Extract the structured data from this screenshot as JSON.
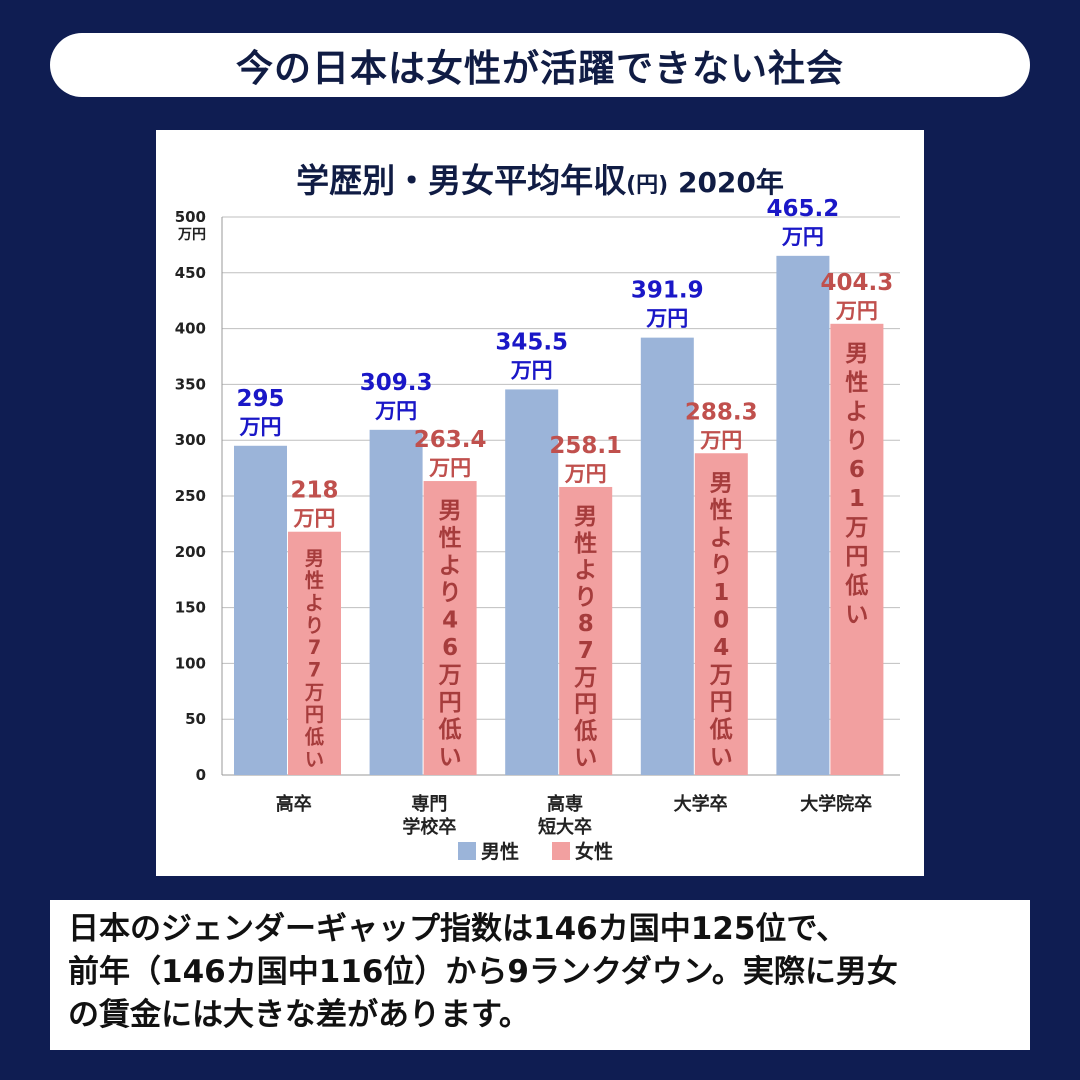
{
  "headline": "今の日本は女性が活躍できない社会",
  "caption_lines": [
    "日本のジェンダーギャップ指数は146カ国中125位で、",
    "前年（146カ国中116位）から9ランクダウン。実際に男女",
    "の賃金には大きな差があります。"
  ],
  "colors": {
    "background": "#0f1d52",
    "male_bar": "#9bb4d9",
    "female_bar": "#f2a0a0",
    "male_label": "#1a17c7",
    "female_label": "#c0504d",
    "gap_label": "#a63c3c"
  },
  "chart_data": {
    "type": "bar",
    "title_main": "学歴別・男女平均年収",
    "title_unit": "(円)",
    "title_year": " 2020年",
    "ylim": [
      0,
      500
    ],
    "y_ticks": [
      0,
      50,
      100,
      150,
      200,
      250,
      300,
      350,
      400,
      450,
      500
    ],
    "y_unit_label": "万円",
    "grid": true,
    "legend_position": "bottom-center",
    "categories": [
      [
        "高卒"
      ],
      [
        "専門",
        "学校卒"
      ],
      [
        "高専",
        "短大卒"
      ],
      [
        "大学卒"
      ],
      [
        "大学院卒"
      ]
    ],
    "value_unit": "万円",
    "series": [
      {
        "name": "男性",
        "values": [
          295,
          309.3,
          345.5,
          391.9,
          465.2
        ],
        "labels": [
          "295",
          "309.3",
          "345.5",
          "391.9",
          "465.2"
        ]
      },
      {
        "name": "女性",
        "values": [
          218,
          263.4,
          258.1,
          288.3,
          404.3
        ],
        "labels": [
          "218",
          "263.4",
          "258.1",
          "288.3",
          "404.3"
        ]
      }
    ],
    "gap_annotations": [
      "男性より77万円低い",
      "男性より46万円低い",
      "男性より87万円低い",
      "男性より104万円低い",
      "男性より61万円低い"
    ]
  }
}
